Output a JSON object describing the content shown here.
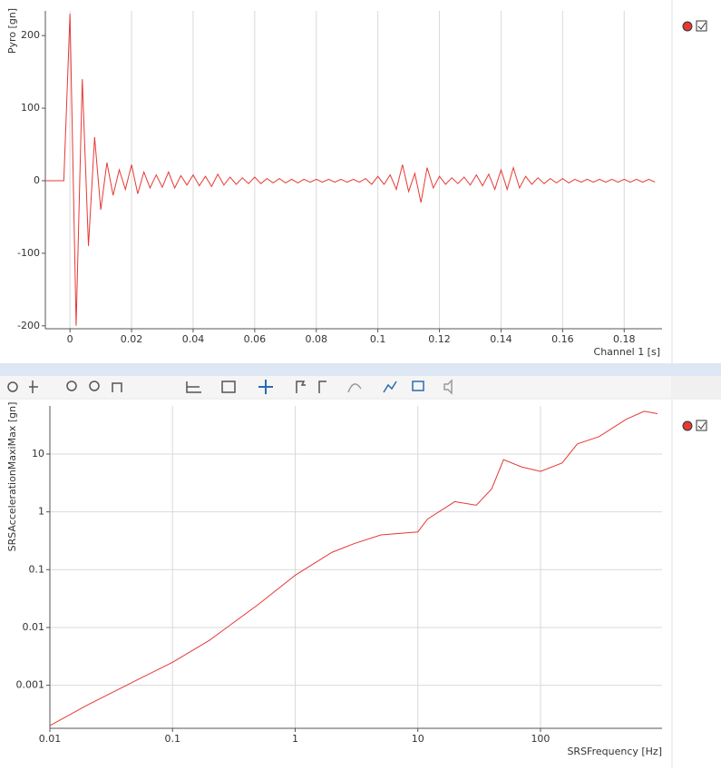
{
  "chart_data": [
    {
      "type": "line",
      "y_label": "Pyro [gn]",
      "x_label": "Channel 1 [s]",
      "grid": "x",
      "color": "#e53935",
      "xlim": [
        -0.008,
        0.1923
      ],
      "ylim": [
        -204,
        234
      ],
      "xticks": [
        0,
        0.02,
        0.04,
        0.06,
        0.08,
        0.1,
        0.12,
        0.14,
        0.16,
        0.18
      ],
      "yticks": [
        -200,
        -100,
        0,
        100,
        200
      ],
      "x": [
        -0.008,
        -0.006,
        -0.004,
        -0.002,
        0,
        0.002,
        0.004,
        0.006,
        0.008,
        0.01,
        0.012,
        0.014,
        0.016,
        0.018,
        0.02,
        0.022,
        0.024,
        0.026,
        0.028,
        0.03,
        0.032,
        0.034,
        0.036,
        0.038,
        0.04,
        0.042,
        0.044,
        0.046,
        0.048,
        0.05,
        0.052,
        0.054,
        0.056,
        0.058,
        0.06,
        0.062,
        0.064,
        0.066,
        0.068,
        0.07,
        0.072,
        0.074,
        0.076,
        0.078,
        0.08,
        0.082,
        0.084,
        0.086,
        0.088,
        0.09,
        0.092,
        0.094,
        0.096,
        0.098,
        0.1,
        0.102,
        0.104,
        0.106,
        0.108,
        0.11,
        0.112,
        0.114,
        0.116,
        0.118,
        0.12,
        0.122,
        0.124,
        0.126,
        0.128,
        0.13,
        0.132,
        0.134,
        0.136,
        0.138,
        0.14,
        0.142,
        0.144,
        0.146,
        0.148,
        0.15,
        0.152,
        0.154,
        0.156,
        0.158,
        0.16,
        0.162,
        0.164,
        0.166,
        0.168,
        0.17,
        0.172,
        0.174,
        0.176,
        0.178,
        0.18,
        0.182,
        0.184,
        0.186,
        0.188,
        0.19
      ],
      "values": [
        0,
        0,
        0,
        0,
        230,
        -200,
        140,
        -90,
        60,
        -40,
        25,
        -20,
        15,
        -12,
        22,
        -18,
        12,
        -10,
        8,
        -9,
        12,
        -10,
        7,
        -6,
        8,
        -7,
        6,
        -8,
        9,
        -6,
        5,
        -5,
        4,
        -4,
        5,
        -4,
        3,
        -3,
        3,
        -3,
        2,
        -3,
        2,
        -2,
        2,
        -2,
        2,
        -2,
        2,
        -2,
        2,
        -2,
        3,
        -5,
        6,
        -5,
        8,
        -12,
        22,
        -15,
        10,
        -30,
        18,
        -10,
        6,
        -5,
        4,
        -4,
        5,
        -6,
        8,
        -7,
        9,
        -12,
        15,
        -12,
        18,
        -10,
        6,
        -5,
        4,
        -4,
        3,
        -3,
        3,
        -3,
        2,
        -2,
        2,
        -2,
        2,
        -2,
        2,
        -2,
        2,
        -2,
        2,
        -2,
        2,
        -2
      ]
    },
    {
      "type": "line",
      "y_label": "SRSAccelerationMaxiMax [gn]",
      "x_label": "SRSFrequency [Hz]",
      "grid": "both",
      "color": "#e53935",
      "xscale": "log",
      "yscale": "log",
      "xlim": [
        0.01,
        980
      ],
      "ylim": [
        0.00018,
        68
      ],
      "xticks": [
        0.01,
        0.1,
        1,
        10,
        100
      ],
      "yticks": [
        0.001,
        0.01,
        0.1,
        1,
        10
      ],
      "x": [
        0.01,
        0.02,
        0.05,
        0.1,
        0.2,
        0.5,
        1,
        2,
        3,
        5,
        10,
        12,
        20,
        30,
        40,
        50,
        70,
        100,
        150,
        200,
        300,
        500,
        700,
        900
      ],
      "values": [
        0.0002,
        0.00045,
        0.0012,
        0.0025,
        0.006,
        0.025,
        0.08,
        0.2,
        0.28,
        0.4,
        0.45,
        0.75,
        1.5,
        1.3,
        2.5,
        8,
        6,
        5,
        7,
        15,
        20,
        40,
        55,
        50
      ]
    }
  ]
}
